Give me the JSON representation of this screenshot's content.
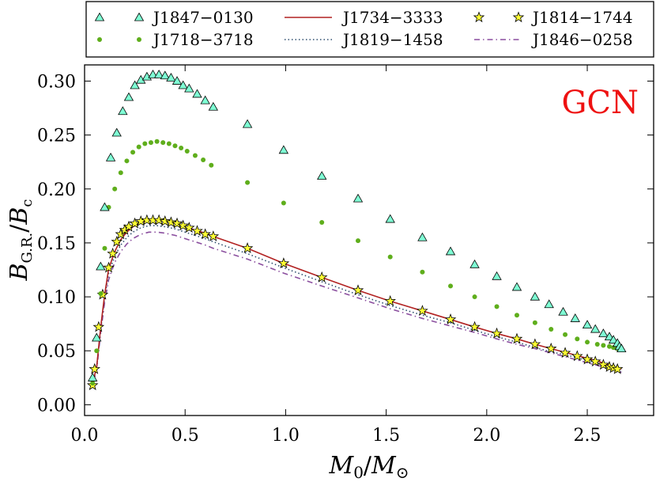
{
  "chart_data": {
    "type": "scatter",
    "title": "",
    "annotation": "GCN",
    "annotation_color": "#ee1111",
    "xlabel_main": "M",
    "xlabel_sub0": "0",
    "xlabel_sep": "/",
    "xlabel_main2": "M",
    "xlabel_sub2": "⊙",
    "ylabel_main": "B",
    "ylabel_sub": "G.R.",
    "ylabel_sep": "/",
    "ylabel_main2": "B",
    "ylabel_sub2": "c",
    "xlim": [
      0.0,
      2.83
    ],
    "ylim": [
      -0.01,
      0.315
    ],
    "xticks": [
      0.0,
      0.5,
      1.0,
      1.5,
      2.0,
      2.5
    ],
    "xtick_labels": [
      "0.0",
      "0.5",
      "1.0",
      "1.5",
      "2.0",
      "2.5"
    ],
    "yticks": [
      0.0,
      0.05,
      0.1,
      0.15,
      0.2,
      0.25,
      0.3
    ],
    "ytick_labels": [
      "0.00",
      "0.05",
      "0.10",
      "0.15",
      "0.20",
      "0.25",
      "0.30"
    ],
    "legend_position": "top, outside plot",
    "series": [
      {
        "name": "J1847−0130",
        "marker": "triangle",
        "color": "#7fffd4",
        "x": [
          0.04,
          0.06,
          0.08,
          0.1,
          0.13,
          0.16,
          0.19,
          0.22,
          0.25,
          0.28,
          0.31,
          0.34,
          0.37,
          0.4,
          0.43,
          0.46,
          0.49,
          0.52,
          0.56,
          0.6,
          0.64,
          0.81,
          0.99,
          1.18,
          1.36,
          1.52,
          1.68,
          1.82,
          1.94,
          2.05,
          2.15,
          2.24,
          2.31,
          2.38,
          2.44,
          2.5,
          2.54,
          2.58,
          2.61,
          2.63,
          2.65,
          2.66,
          2.67
        ],
        "y": [
          0.025,
          0.062,
          0.128,
          0.183,
          0.229,
          0.252,
          0.272,
          0.285,
          0.296,
          0.301,
          0.304,
          0.306,
          0.306,
          0.305,
          0.303,
          0.3,
          0.296,
          0.293,
          0.288,
          0.282,
          0.276,
          0.26,
          0.236,
          0.212,
          0.191,
          0.172,
          0.155,
          0.142,
          0.13,
          0.119,
          0.109,
          0.1,
          0.093,
          0.086,
          0.08,
          0.074,
          0.07,
          0.066,
          0.063,
          0.06,
          0.057,
          0.054,
          0.052
        ]
      },
      {
        "name": "J1718−3718",
        "marker": "circle",
        "color": "#5fae1c",
        "x": [
          0.04,
          0.06,
          0.08,
          0.1,
          0.12,
          0.15,
          0.18,
          0.21,
          0.24,
          0.27,
          0.3,
          0.33,
          0.36,
          0.39,
          0.42,
          0.45,
          0.48,
          0.51,
          0.55,
          0.59,
          0.63,
          0.81,
          0.99,
          1.18,
          1.36,
          1.52,
          1.68,
          1.82,
          1.94,
          2.05,
          2.15,
          2.24,
          2.32,
          2.39,
          2.45,
          2.5,
          2.55,
          2.58,
          2.61,
          2.63,
          2.65
        ],
        "y": [
          0.02,
          0.05,
          0.103,
          0.145,
          0.183,
          0.2,
          0.215,
          0.226,
          0.234,
          0.239,
          0.242,
          0.243,
          0.244,
          0.243,
          0.242,
          0.24,
          0.238,
          0.235,
          0.231,
          0.227,
          0.222,
          0.206,
          0.187,
          0.169,
          0.152,
          0.137,
          0.123,
          0.11,
          0.1,
          0.091,
          0.083,
          0.076,
          0.07,
          0.065,
          0.061,
          0.058,
          0.056,
          0.055,
          0.054,
          0.053,
          0.052
        ]
      },
      {
        "name": "J1734−3333",
        "marker": "line-solid",
        "color": "#b22222",
        "x": [
          0.04,
          0.06,
          0.08,
          0.1,
          0.12,
          0.15,
          0.18,
          0.21,
          0.24,
          0.28,
          0.32,
          0.36,
          0.4,
          0.45,
          0.5,
          0.55,
          0.6,
          0.64,
          0.81,
          0.99,
          1.18,
          1.36,
          1.52,
          1.68,
          1.82,
          1.94,
          2.05,
          2.15,
          2.24,
          2.32,
          2.4,
          2.46,
          2.52,
          2.56,
          2.6,
          2.63,
          2.65,
          2.67
        ],
        "y": [
          0.02,
          0.035,
          0.072,
          0.102,
          0.126,
          0.142,
          0.153,
          0.16,
          0.165,
          0.169,
          0.171,
          0.171,
          0.17,
          0.168,
          0.165,
          0.162,
          0.159,
          0.156,
          0.145,
          0.131,
          0.118,
          0.106,
          0.096,
          0.087,
          0.079,
          0.072,
          0.066,
          0.061,
          0.056,
          0.052,
          0.048,
          0.045,
          0.042,
          0.04,
          0.037,
          0.035,
          0.034,
          0.033
        ]
      },
      {
        "name": "J1819−1458",
        "marker": "line-dotted",
        "color": "#2f4f6f",
        "x": [
          0.04,
          0.06,
          0.08,
          0.1,
          0.12,
          0.15,
          0.18,
          0.21,
          0.24,
          0.28,
          0.32,
          0.36,
          0.4,
          0.45,
          0.5,
          0.55,
          0.6,
          0.64,
          0.81,
          0.99,
          1.18,
          1.36,
          1.52,
          1.68,
          1.82,
          1.94,
          2.05,
          2.15,
          2.24,
          2.32,
          2.4,
          2.46,
          2.52,
          2.56,
          2.6,
          2.63,
          2.65,
          2.67
        ],
        "y": [
          0.02,
          0.034,
          0.07,
          0.099,
          0.122,
          0.138,
          0.148,
          0.155,
          0.16,
          0.164,
          0.166,
          0.166,
          0.165,
          0.163,
          0.16,
          0.157,
          0.154,
          0.151,
          0.14,
          0.127,
          0.114,
          0.102,
          0.092,
          0.083,
          0.076,
          0.069,
          0.063,
          0.058,
          0.053,
          0.049,
          0.046,
          0.043,
          0.04,
          0.037,
          0.035,
          0.033,
          0.032,
          0.031
        ]
      },
      {
        "name": "J1814−1744",
        "marker": "star",
        "color": "#ffff33",
        "x": [
          0.04,
          0.05,
          0.07,
          0.09,
          0.12,
          0.14,
          0.16,
          0.18,
          0.2,
          0.22,
          0.25,
          0.28,
          0.31,
          0.34,
          0.37,
          0.4,
          0.43,
          0.46,
          0.49,
          0.52,
          0.56,
          0.6,
          0.64,
          0.81,
          0.99,
          1.18,
          1.36,
          1.52,
          1.68,
          1.82,
          1.94,
          2.05,
          2.15,
          2.24,
          2.32,
          2.39,
          2.45,
          2.5,
          2.54,
          2.58,
          2.61,
          2.63,
          2.65
        ],
        "y": [
          0.018,
          0.033,
          0.072,
          0.102,
          0.127,
          0.14,
          0.151,
          0.158,
          0.162,
          0.165,
          0.168,
          0.17,
          0.171,
          0.171,
          0.171,
          0.17,
          0.169,
          0.168,
          0.166,
          0.164,
          0.161,
          0.158,
          0.156,
          0.145,
          0.131,
          0.118,
          0.106,
          0.096,
          0.087,
          0.079,
          0.072,
          0.066,
          0.061,
          0.056,
          0.052,
          0.048,
          0.045,
          0.042,
          0.04,
          0.037,
          0.035,
          0.034,
          0.033
        ]
      },
      {
        "name": "J1846−0258",
        "marker": "line-dashdot",
        "color": "#8b4f9f",
        "x": [
          0.04,
          0.06,
          0.08,
          0.1,
          0.12,
          0.15,
          0.18,
          0.21,
          0.24,
          0.28,
          0.32,
          0.36,
          0.4,
          0.45,
          0.5,
          0.55,
          0.6,
          0.64,
          0.81,
          0.99,
          1.18,
          1.36,
          1.52,
          1.68,
          1.82,
          1.94,
          2.05,
          2.15,
          2.24,
          2.32,
          2.4,
          2.46,
          2.52,
          2.56,
          2.6,
          2.63,
          2.65,
          2.67
        ],
        "y": [
          0.018,
          0.032,
          0.067,
          0.095,
          0.116,
          0.132,
          0.142,
          0.149,
          0.154,
          0.158,
          0.16,
          0.16,
          0.159,
          0.157,
          0.154,
          0.151,
          0.148,
          0.145,
          0.135,
          0.122,
          0.11,
          0.099,
          0.089,
          0.08,
          0.073,
          0.067,
          0.061,
          0.056,
          0.052,
          0.048,
          0.044,
          0.041,
          0.038,
          0.036,
          0.034,
          0.032,
          0.031,
          0.03
        ]
      }
    ]
  }
}
